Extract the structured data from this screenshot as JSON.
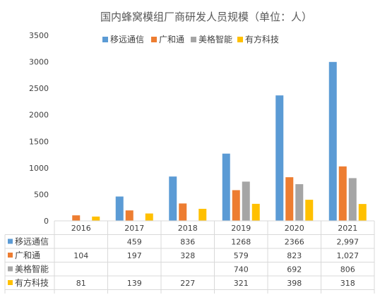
{
  "chart_data": {
    "type": "bar",
    "title": "国内蜂窝模组厂商研发人员规模（单位：人）",
    "categories": [
      "2016",
      "2017",
      "2018",
      "2019",
      "2020",
      "2021"
    ],
    "ylim": [
      0,
      3500
    ],
    "yticks": [
      "0",
      "500",
      "1000",
      "1500",
      "2000",
      "2500",
      "3000",
      "3500"
    ],
    "grid": false,
    "legend_position": "top",
    "series": [
      {
        "name": "移远通信",
        "color": "#5B9BD5",
        "values": [
          null,
          459,
          836,
          1268,
          2366,
          2997
        ],
        "labels": [
          "",
          "459",
          "836",
          "1268",
          "2366",
          "2,997"
        ]
      },
      {
        "name": "广和通",
        "color": "#ED7D31",
        "values": [
          104,
          197,
          328,
          579,
          823,
          1027
        ],
        "labels": [
          "104",
          "197",
          "328",
          "579",
          "823",
          "1,027"
        ]
      },
      {
        "name": "美格智能",
        "color": "#A5A5A5",
        "values": [
          null,
          null,
          null,
          740,
          692,
          806
        ],
        "labels": [
          "",
          "",
          "",
          "740",
          "692",
          "806"
        ]
      },
      {
        "name": "有方科技",
        "color": "#FFC000",
        "values": [
          81,
          139,
          227,
          321,
          398,
          318
        ],
        "labels": [
          "81",
          "139",
          "227",
          "321",
          "398",
          "318"
        ]
      }
    ]
  }
}
